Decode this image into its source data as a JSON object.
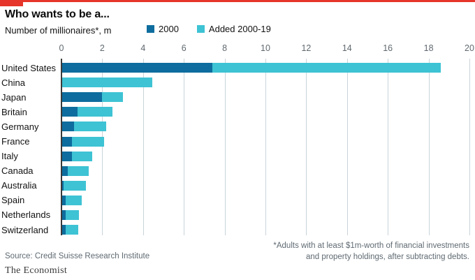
{
  "header": {
    "title": "Who wants to be a...",
    "subtitle": "Number of millionaires*, m"
  },
  "colors": {
    "brand_red": "#e6352a",
    "blue_2000": "#0e6d9e",
    "cyan_added": "#3ec3d4",
    "gridline": "#c9d4da",
    "axis_line": "#3a3a3a",
    "tick_text": "#60696f",
    "muted_text": "#5f6a72"
  },
  "chart_data": {
    "type": "bar",
    "orientation": "horizontal",
    "stacked": true,
    "title": "Who wants to be a...",
    "subtitle": "Number of millionaires*, m",
    "xlabel": "",
    "ylabel": "",
    "xlim": [
      0,
      20
    ],
    "ticks": [
      0,
      2,
      4,
      6,
      8,
      10,
      12,
      14,
      16,
      18,
      20
    ],
    "grid": "vertical",
    "legend_position": "top",
    "categories": [
      "United States",
      "China",
      "Japan",
      "Britain",
      "Germany",
      "France",
      "Italy",
      "Canada",
      "Australia",
      "Spain",
      "Netherlands",
      "Switzerland"
    ],
    "series": [
      {
        "name": "2000",
        "color": "#0e6d9e",
        "values": [
          7.4,
          0.04,
          2.0,
          0.8,
          0.6,
          0.5,
          0.5,
          0.3,
          0.1,
          0.2,
          0.2,
          0.2
        ]
      },
      {
        "name": "Added 2000-19",
        "color": "#3ec3d4",
        "values": [
          11.2,
          4.4,
          1.0,
          1.7,
          1.6,
          1.6,
          1.0,
          1.05,
          1.1,
          0.8,
          0.65,
          0.62
        ]
      }
    ],
    "totals": [
      18.6,
      4.44,
      3.0,
      2.5,
      2.2,
      2.1,
      1.5,
      1.35,
      1.2,
      1.0,
      0.85,
      0.82
    ]
  },
  "footer": {
    "footnote_line1": "*Adults with at least $1m-worth of financial investments",
    "footnote_line2": "and property holdings, after subtracting debts.",
    "source": "Source: Credit Suisse Research Institute",
    "brand": "The Economist"
  }
}
